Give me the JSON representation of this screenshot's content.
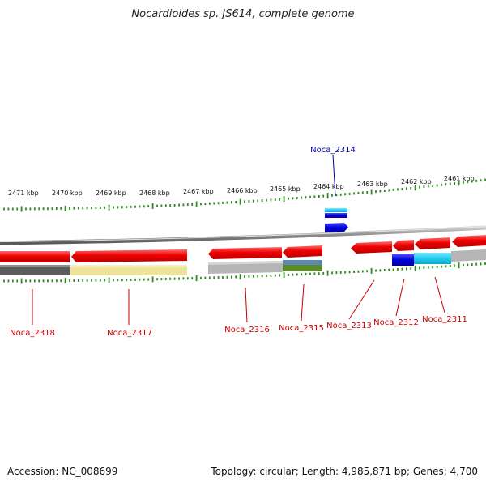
{
  "title": "Nocardioides sp. JS614, complete genome",
  "footer": {
    "accession": "Accession: NC_008699",
    "summary": "Topology: circular; Length: 4,985,871 bp; Genes: 4,700"
  },
  "colors": {
    "backbone": "#8a8a8a",
    "tick": "#2e8b1e",
    "gene_red": "#ee0000",
    "gene_blue": "#0000dd",
    "gene_cyan": "#22ccee",
    "label_red": "#cc0000",
    "label_blue": "#0000aa",
    "band_gray": "#b5b5b5",
    "band_dark": "#5c5c5c",
    "band_yellow": "#ede39a",
    "band_green": "#5a8a2a",
    "band_steel": "#5a8ab5"
  },
  "scale": {
    "labels": [
      {
        "text": "2471 kbp",
        "kbp": 2471
      },
      {
        "text": "2470 kbp",
        "kbp": 2470
      },
      {
        "text": "2469 kbp",
        "kbp": 2469
      },
      {
        "text": "2468 kbp",
        "kbp": 2468
      },
      {
        "text": "2467 kbp",
        "kbp": 2467
      },
      {
        "text": "2466 kbp",
        "kbp": 2466
      },
      {
        "text": "2465 kbp",
        "kbp": 2465
      },
      {
        "text": "2464 kbp",
        "kbp": 2464
      },
      {
        "text": "2463 kbp",
        "kbp": 2463
      },
      {
        "text": "2462 kbp",
        "kbp": 2462
      },
      {
        "text": "2461 kbp",
        "kbp": 2461
      }
    ]
  },
  "genes": [
    {
      "name": "Noca_2318",
      "strand": "reverse",
      "color_key": "gene_red"
    },
    {
      "name": "Noca_2317",
      "strand": "reverse",
      "color_key": "gene_red"
    },
    {
      "name": "Noca_2316",
      "strand": "reverse",
      "color_key": "gene_red"
    },
    {
      "name": "Noca_2315",
      "strand": "reverse",
      "color_key": "gene_red"
    },
    {
      "name": "Noca_2314",
      "strand": "forward",
      "color_key": "gene_blue"
    },
    {
      "name": "Noca_2313",
      "strand": "reverse",
      "color_key": "gene_red"
    },
    {
      "name": "Noca_2312",
      "strand": "reverse",
      "color_key": "gene_red"
    },
    {
      "name": "Noca_2311",
      "strand": "reverse",
      "color_key": "gene_red"
    }
  ]
}
